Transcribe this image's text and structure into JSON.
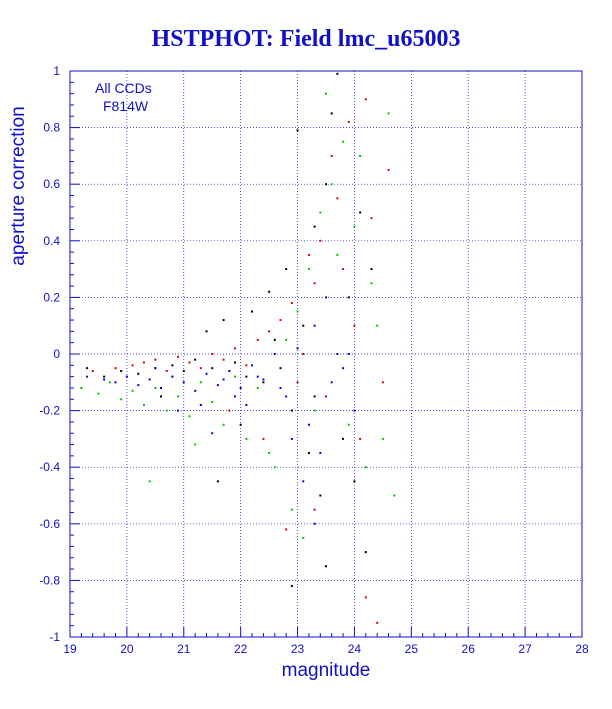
{
  "chart_data": {
    "type": "scatter",
    "title": "HSTPHOT: Field lmc_u65003",
    "xlabel": "magnitude",
    "ylabel": "aperture correction",
    "xlim": [
      19,
      28
    ],
    "ylim": [
      -1,
      1
    ],
    "xticks": [
      "19",
      "20",
      "21",
      "22",
      "23",
      "24",
      "25",
      "26",
      "27",
      "28"
    ],
    "yticks": [
      "1",
      "0.8",
      "0.6",
      "0.4",
      "0.2",
      "0",
      "-0.2",
      "-0.4",
      "-0.6",
      "-0.8",
      "-1"
    ],
    "grid": true,
    "annotations": [
      "All CCDs",
      "F814W"
    ],
    "colors": {
      "axis": "#1010c8",
      "grid": "#1010c8",
      "title": "#1010c8"
    },
    "series": [
      {
        "color": "#000000",
        "points": [
          [
            19.3,
            -0.05
          ],
          [
            19.6,
            -0.08
          ],
          [
            19.9,
            -0.06
          ],
          [
            20.2,
            -0.07
          ],
          [
            20.5,
            -0.05
          ],
          [
            20.8,
            -0.04
          ],
          [
            21.0,
            -0.06
          ],
          [
            21.2,
            -0.02
          ],
          [
            21.4,
            0.08
          ],
          [
            21.5,
            -0.05
          ],
          [
            21.7,
            0.12
          ],
          [
            21.9,
            -0.03
          ],
          [
            22.1,
            -0.08
          ],
          [
            22.2,
            0.15
          ],
          [
            22.4,
            -0.1
          ],
          [
            22.5,
            0.22
          ],
          [
            22.7,
            -0.05
          ],
          [
            22.8,
            0.3
          ],
          [
            22.9,
            -0.2
          ],
          [
            23.0,
            0.79
          ],
          [
            23.1,
            0.1
          ],
          [
            23.2,
            -0.35
          ],
          [
            23.3,
            0.45
          ],
          [
            23.4,
            -0.5
          ],
          [
            23.5,
            0.6
          ],
          [
            23.6,
            0.85
          ],
          [
            23.7,
            0.99
          ],
          [
            23.8,
            -0.3
          ],
          [
            23.9,
            0.2
          ],
          [
            24.0,
            -0.45
          ],
          [
            24.1,
            0.5
          ],
          [
            24.2,
            -0.7
          ],
          [
            24.3,
            0.3
          ],
          [
            22.9,
            -0.82
          ],
          [
            23.5,
            -0.75
          ],
          [
            21.6,
            -0.45
          ],
          [
            22.0,
            -0.25
          ],
          [
            20.6,
            -0.15
          ],
          [
            22.6,
            0.05
          ],
          [
            23.3,
            -0.15
          ]
        ]
      },
      {
        "color": "#e00000",
        "points": [
          [
            19.4,
            -0.06
          ],
          [
            19.8,
            -0.05
          ],
          [
            20.1,
            -0.04
          ],
          [
            20.3,
            -0.03
          ],
          [
            20.5,
            -0.02
          ],
          [
            20.7,
            -0.06
          ],
          [
            20.9,
            -0.01
          ],
          [
            21.1,
            -0.03
          ],
          [
            21.3,
            -0.05
          ],
          [
            21.5,
            0.0
          ],
          [
            21.7,
            -0.02
          ],
          [
            21.9,
            0.02
          ],
          [
            22.1,
            -0.04
          ],
          [
            22.3,
            0.05
          ],
          [
            22.5,
            0.08
          ],
          [
            22.7,
            0.12
          ],
          [
            22.9,
            0.18
          ],
          [
            23.0,
            -0.1
          ],
          [
            23.2,
            0.35
          ],
          [
            23.3,
            0.25
          ],
          [
            23.4,
            0.4
          ],
          [
            23.5,
            -0.15
          ],
          [
            23.6,
            0.7
          ],
          [
            23.7,
            0.55
          ],
          [
            23.8,
            0.3
          ],
          [
            23.9,
            0.82
          ],
          [
            24.0,
            0.1
          ],
          [
            24.1,
            -0.3
          ],
          [
            24.2,
            0.9
          ],
          [
            24.3,
            0.48
          ],
          [
            24.5,
            -0.1
          ],
          [
            24.6,
            0.65
          ],
          [
            24.4,
            -0.95
          ],
          [
            24.2,
            -0.86
          ],
          [
            22.8,
            -0.62
          ],
          [
            23.3,
            -0.55
          ],
          [
            21.8,
            -0.2
          ],
          [
            22.4,
            -0.3
          ],
          [
            23.1,
            0.0
          ],
          [
            20.8,
            -0.08
          ]
        ]
      },
      {
        "color": "#00c800",
        "points": [
          [
            19.2,
            -0.12
          ],
          [
            19.5,
            -0.14
          ],
          [
            19.7,
            -0.1
          ],
          [
            19.9,
            -0.16
          ],
          [
            20.1,
            -0.13
          ],
          [
            20.3,
            -0.18
          ],
          [
            20.5,
            -0.12
          ],
          [
            20.7,
            -0.2
          ],
          [
            20.9,
            -0.15
          ],
          [
            21.1,
            -0.22
          ],
          [
            21.3,
            -0.1
          ],
          [
            21.5,
            -0.17
          ],
          [
            21.7,
            -0.25
          ],
          [
            21.9,
            -0.08
          ],
          [
            22.1,
            -0.3
          ],
          [
            22.3,
            -0.12
          ],
          [
            22.5,
            -0.35
          ],
          [
            22.6,
            -0.4
          ],
          [
            22.8,
            0.05
          ],
          [
            22.9,
            -0.55
          ],
          [
            23.0,
            0.15
          ],
          [
            23.1,
            -0.65
          ],
          [
            23.2,
            0.3
          ],
          [
            23.3,
            -0.2
          ],
          [
            23.4,
            0.5
          ],
          [
            23.5,
            0.92
          ],
          [
            23.6,
            0.6
          ],
          [
            23.7,
            0.35
          ],
          [
            23.8,
            0.75
          ],
          [
            23.9,
            -0.25
          ],
          [
            24.0,
            0.45
          ],
          [
            24.1,
            0.7
          ],
          [
            24.2,
            -0.4
          ],
          [
            24.3,
            0.25
          ],
          [
            24.4,
            0.1
          ],
          [
            24.5,
            -0.3
          ],
          [
            24.6,
            0.85
          ],
          [
            24.7,
            -0.5
          ],
          [
            20.4,
            -0.45
          ],
          [
            21.2,
            -0.32
          ]
        ]
      },
      {
        "color": "#0000e0",
        "points": [
          [
            19.3,
            -0.08
          ],
          [
            19.6,
            -0.09
          ],
          [
            19.8,
            -0.1
          ],
          [
            20.0,
            -0.08
          ],
          [
            20.2,
            -0.11
          ],
          [
            20.4,
            -0.09
          ],
          [
            20.6,
            -0.12
          ],
          [
            20.8,
            -0.08
          ],
          [
            21.0,
            -0.1
          ],
          [
            21.2,
            -0.13
          ],
          [
            21.4,
            -0.07
          ],
          [
            21.6,
            -0.11
          ],
          [
            21.8,
            -0.06
          ],
          [
            22.0,
            -0.12
          ],
          [
            22.2,
            -0.04
          ],
          [
            22.4,
            -0.09
          ],
          [
            22.6,
            0.0
          ],
          [
            22.8,
            -0.15
          ],
          [
            23.0,
            0.02
          ],
          [
            23.2,
            -0.25
          ],
          [
            23.3,
            0.1
          ],
          [
            23.4,
            -0.35
          ],
          [
            23.5,
            0.2
          ],
          [
            23.6,
            -0.1
          ],
          [
            23.7,
            0.0
          ],
          [
            23.8,
            -0.05
          ],
          [
            23.9,
            0.0
          ],
          [
            24.0,
            -0.2
          ],
          [
            21.5,
            -0.28
          ],
          [
            22.1,
            -0.18
          ],
          [
            20.9,
            -0.2
          ],
          [
            22.9,
            -0.3
          ],
          [
            23.1,
            -0.45
          ],
          [
            22.3,
            -0.08
          ],
          [
            21.9,
            -0.15
          ],
          [
            20.5,
            -0.05
          ],
          [
            21.7,
            -0.09
          ],
          [
            22.7,
            -0.12
          ],
          [
            23.3,
            -0.6
          ],
          [
            21.3,
            -0.18
          ]
        ]
      }
    ]
  }
}
